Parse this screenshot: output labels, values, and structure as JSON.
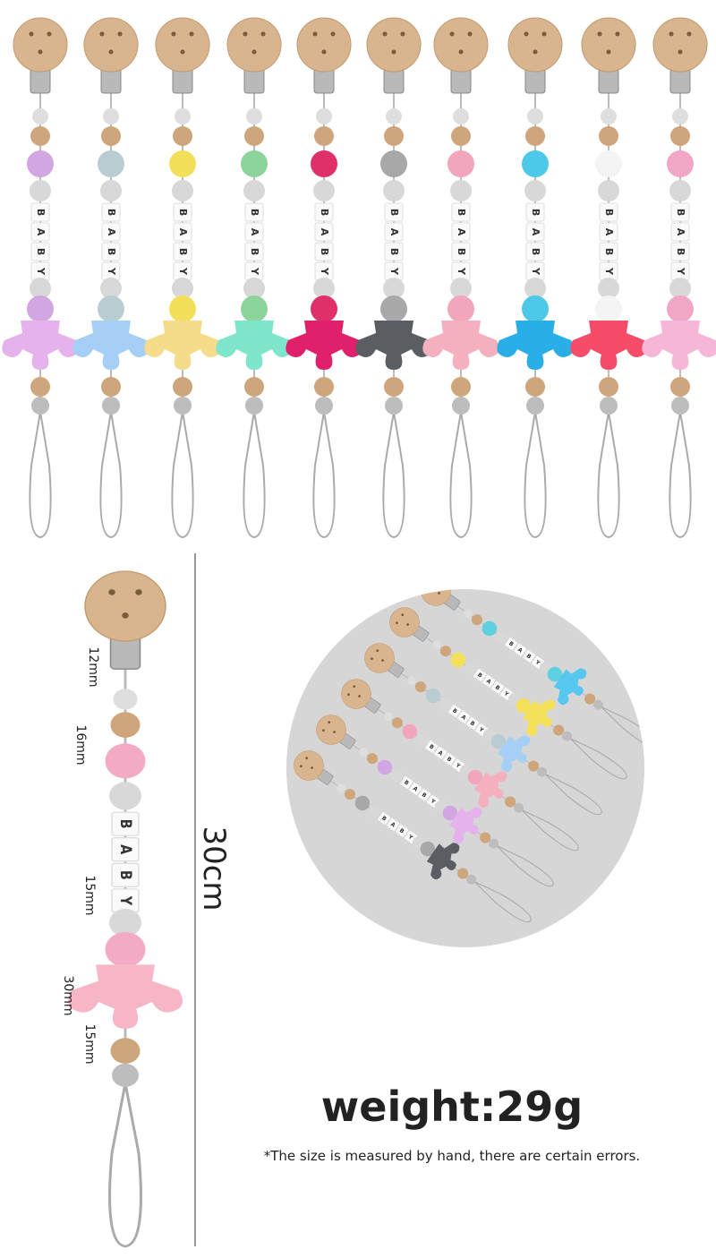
{
  "bead_letters": [
    "B",
    "A",
    "B",
    "Y"
  ],
  "size_labels": {
    "total_length": "30cm",
    "clip_bead": "12mm",
    "crochet_bead": "16mm",
    "letter_bead": "15mm",
    "crown": "30mm",
    "wood_bead": "15mm"
  },
  "weight": "weight:29g",
  "note": "*The size is measured by hand, there are certain errors."
}
